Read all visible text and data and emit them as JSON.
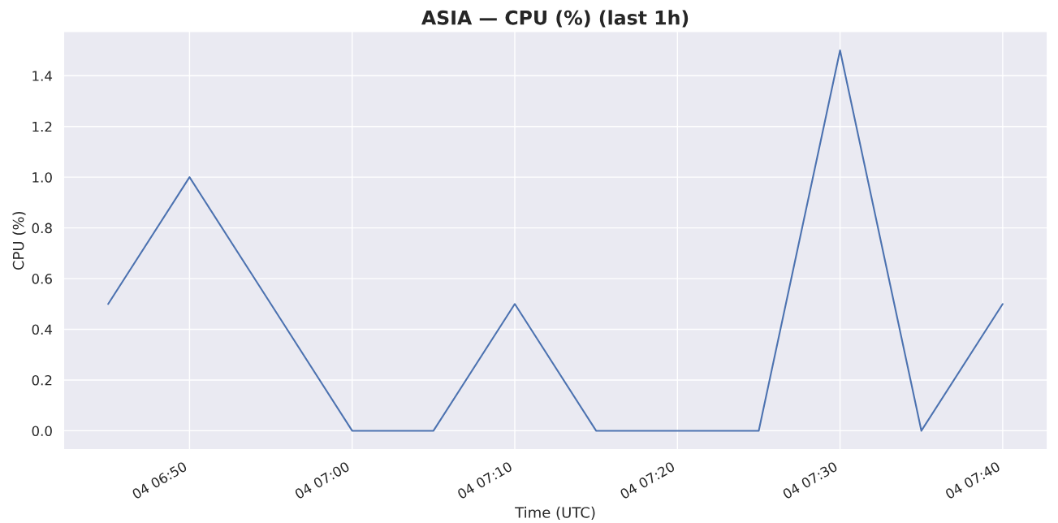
{
  "chart_data": {
    "type": "line",
    "title": "ASIA — CPU (%) (last 1h)",
    "xlabel": "Time (UTC)",
    "ylabel": "CPU (%)",
    "categories": [
      null,
      "04 06:50",
      null,
      "04 07:00",
      null,
      "04 07:10",
      null,
      "04 07:20",
      null,
      "04 07:30",
      null,
      "04 07:40"
    ],
    "series": [
      {
        "color": "#4c72b0",
        "values": [
          0.5,
          1.0,
          0.5,
          0.0,
          0.0,
          0.5,
          0.0,
          0.0,
          0.0,
          1.5,
          0.0,
          0.5
        ]
      }
    ],
    "ylim": [
      -0.075,
      1.575
    ],
    "yticks": [
      {
        "value": 0,
        "label": "0.0"
      },
      {
        "value": 0.2,
        "label": "0.2"
      },
      {
        "value": 0.4,
        "label": "0.4"
      },
      {
        "value": 0.6,
        "label": "0.6"
      },
      {
        "value": 0.8,
        "label": "0.8"
      },
      {
        "value": 1.0,
        "label": "1.0"
      },
      {
        "value": 1.2,
        "label": "1.2"
      },
      {
        "value": 1.4,
        "label": "1.4"
      }
    ],
    "grid": true
  }
}
